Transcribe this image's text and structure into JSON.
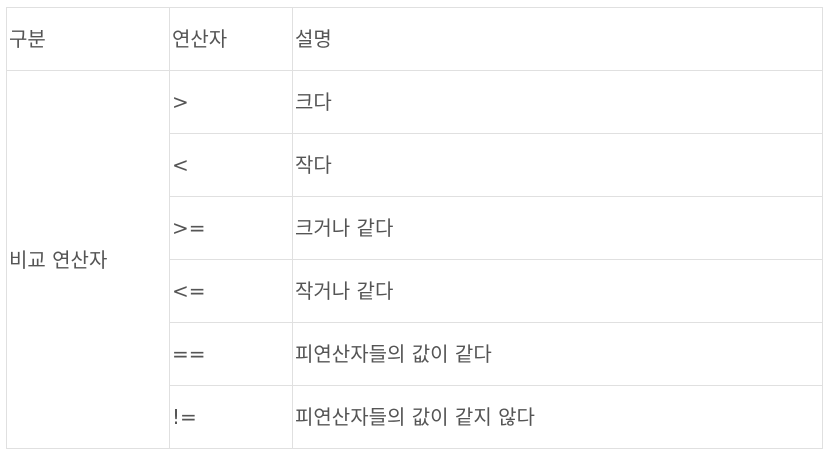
{
  "table": {
    "headers": [
      "구분",
      "연산자",
      "설명"
    ],
    "category": "비교 연산자",
    "rows": [
      {
        "operator": ">",
        "description": "크다"
      },
      {
        "operator": "<",
        "description": "작다"
      },
      {
        "operator": ">=",
        "description": "크거나 같다"
      },
      {
        "operator": "<=",
        "description": "작거나 같다"
      },
      {
        "operator": "==",
        "description": "피연산자들의 값이 같다"
      },
      {
        "operator": "!=",
        "description": "피연산자들의 값이 같지 않다"
      }
    ]
  }
}
